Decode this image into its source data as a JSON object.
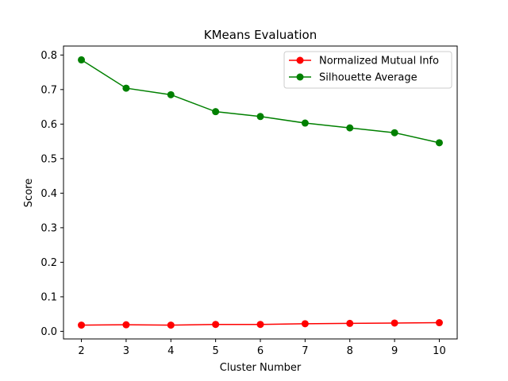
{
  "chart_data": {
    "type": "line",
    "title": "KMeans Evaluation",
    "xlabel": "Cluster Number",
    "ylabel": "Score",
    "x": [
      2,
      3,
      4,
      5,
      6,
      7,
      8,
      9,
      10
    ],
    "xlim": [
      1.6,
      10.4
    ],
    "ylim": [
      -0.022,
      0.826
    ],
    "xticks": [
      2,
      3,
      4,
      5,
      6,
      7,
      8,
      9,
      10
    ],
    "yticks": [
      0.0,
      0.1,
      0.2,
      0.3,
      0.4,
      0.5,
      0.6,
      0.7,
      0.8
    ],
    "ytick_labels": [
      "0.0",
      "0.1",
      "0.2",
      "0.3",
      "0.4",
      "0.5",
      "0.6",
      "0.7",
      "0.8"
    ],
    "grid": false,
    "legend_position": "top-right",
    "series": [
      {
        "name": "Normalized Mutual Info",
        "color": "#ff0000",
        "marker": "circle",
        "values": [
          0.018,
          0.019,
          0.018,
          0.02,
          0.02,
          0.022,
          0.023,
          0.024,
          0.025
        ]
      },
      {
        "name": "Silhouette Average",
        "color": "#008000",
        "marker": "circle",
        "values": [
          0.786,
          0.704,
          0.685,
          0.636,
          0.622,
          0.603,
          0.589,
          0.575,
          0.546
        ]
      }
    ]
  }
}
